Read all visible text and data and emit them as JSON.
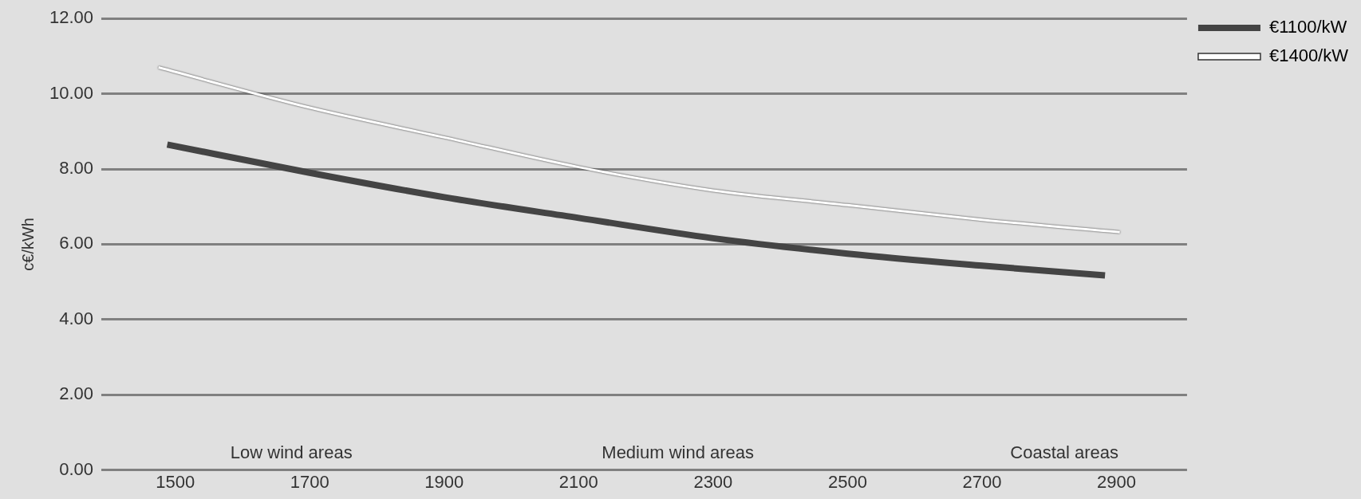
{
  "chart_data": {
    "type": "line",
    "ylabel": "c€/kWh",
    "series": [
      {
        "name": "€1100/kW",
        "color": "#444444",
        "x": [
          1488,
          1700,
          1900,
          2100,
          2300,
          2500,
          2700,
          2883
        ],
        "values": [
          8.65,
          7.9,
          7.25,
          6.7,
          6.16,
          5.75,
          5.43,
          5.17
        ]
      },
      {
        "name": "€1400/kW",
        "color": "#ffffff",
        "x": [
          1475,
          1700,
          1900,
          2100,
          2300,
          2500,
          2700,
          2905
        ],
        "values": [
          10.7,
          9.63,
          8.84,
          8.05,
          7.43,
          7.04,
          6.65,
          6.32
        ]
      }
    ],
    "xlim": [
      1390,
      3005
    ],
    "xticks": [
      1500,
      1700,
      1900,
      2100,
      2300,
      2500,
      2700,
      2900
    ],
    "ylim": [
      0,
      12
    ],
    "yticks": [
      {
        "value": 0,
        "label": "0.00"
      },
      {
        "value": 2,
        "label": "2.00"
      },
      {
        "value": 4,
        "label": "4.00"
      },
      {
        "value": 6,
        "label": "6.00"
      },
      {
        "value": 8,
        "label": "8.00"
      },
      {
        "value": 10,
        "label": "10.00"
      },
      {
        "value": 12,
        "label": "12.00"
      }
    ],
    "annotations": [
      "Low wind areas",
      "Medium wind areas",
      "Coastal areas"
    ],
    "grid": "y",
    "legend": "top right",
    "marker": "none",
    "line_style": "solid"
  }
}
